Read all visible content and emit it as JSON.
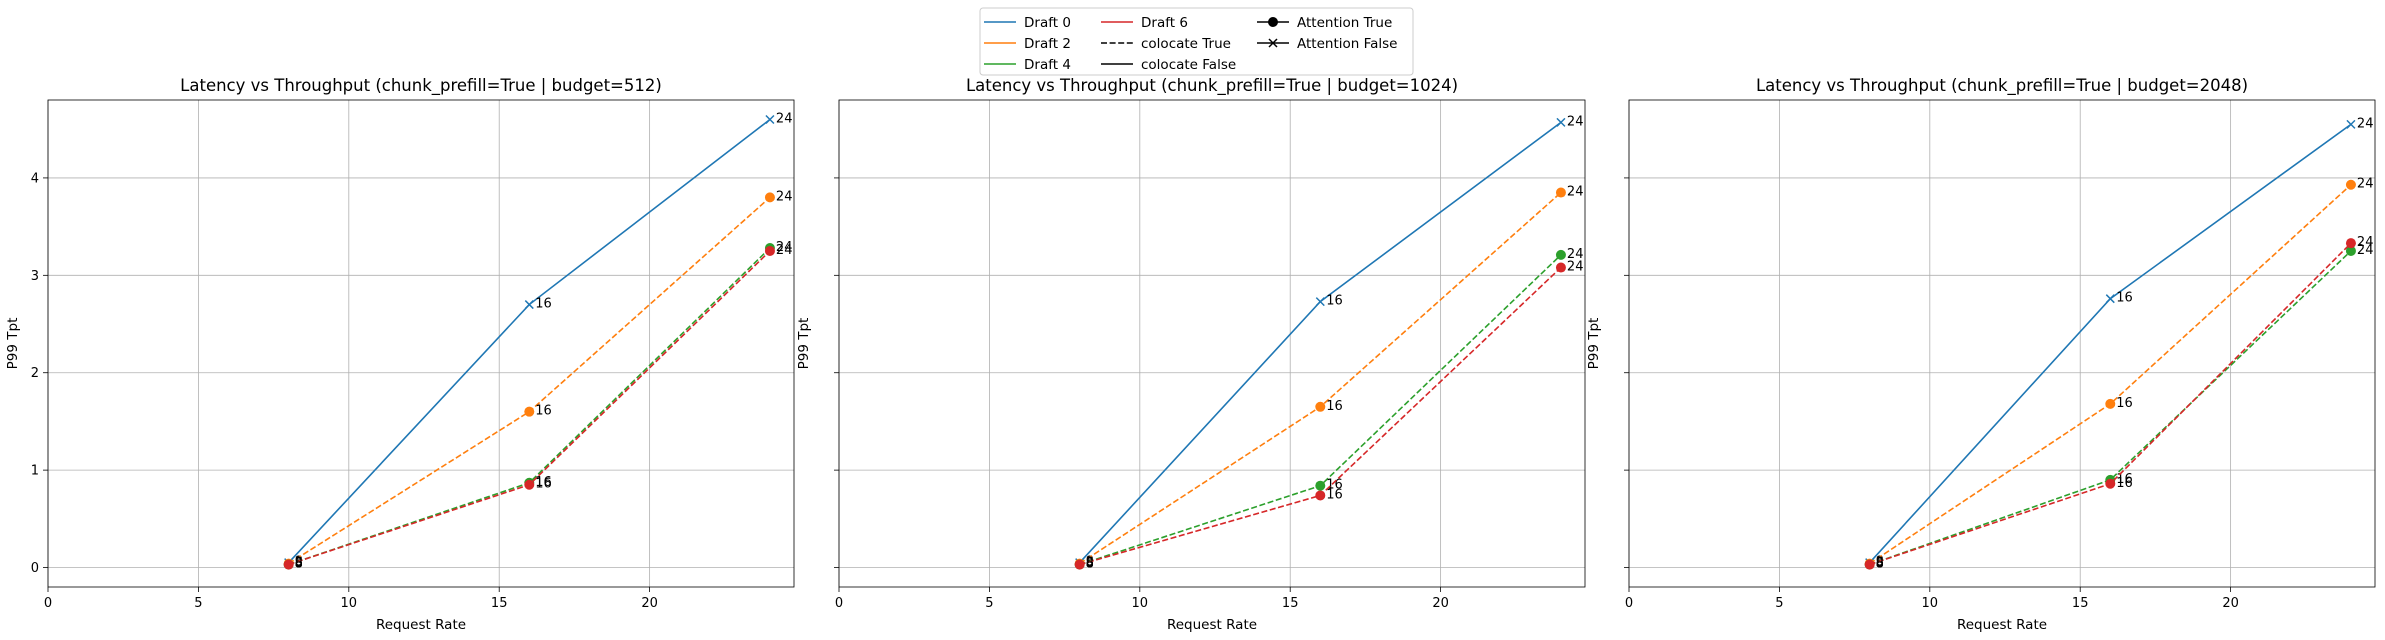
{
  "legend": {
    "entries": [
      {
        "label": "Draft 0",
        "color": "#1f77b4",
        "kind": "line",
        "dash": "solid"
      },
      {
        "label": "Draft 2",
        "color": "#ff7f0e",
        "kind": "line",
        "dash": "solid"
      },
      {
        "label": "Draft 4",
        "color": "#2ca02c",
        "kind": "line",
        "dash": "solid"
      },
      {
        "label": "Draft 6",
        "color": "#d62728",
        "kind": "line",
        "dash": "solid"
      },
      {
        "label": "colocate True",
        "color": "#000000",
        "kind": "line",
        "dash": "dashed"
      },
      {
        "label": "colocate False",
        "color": "#000000",
        "kind": "line",
        "dash": "solid"
      },
      {
        "label": "Attention True",
        "color": "#000000",
        "kind": "marker",
        "marker": "o"
      },
      {
        "label": "Attention False",
        "color": "#000000",
        "kind": "marker",
        "marker": "x"
      }
    ],
    "placement": "top-center"
  },
  "chart_data": [
    {
      "type": "line",
      "title": "Latency vs Throughput (chunk_prefill=True | budget=512)",
      "xlabel": "Request Rate",
      "ylabel": "P99 Tpt",
      "xlim": [
        0,
        24.8
      ],
      "ylim": [
        -0.2,
        4.8
      ],
      "xticks": [
        0,
        5,
        10,
        15,
        20
      ],
      "yticks": [
        0,
        1,
        2,
        3,
        4
      ],
      "grid": true,
      "series": [
        {
          "name": "Draft 0",
          "color": "#1f77b4",
          "dash": "solid",
          "marker": "x",
          "x": [
            8,
            16,
            24
          ],
          "y": [
            0.05,
            2.7,
            4.6
          ],
          "labels": [
            "8",
            "16",
            "24"
          ]
        },
        {
          "name": "Draft 2",
          "color": "#ff7f0e",
          "dash": "dashed",
          "marker": "o",
          "x": [
            8,
            16,
            24
          ],
          "y": [
            0.04,
            1.6,
            3.8
          ],
          "labels": [
            "8",
            "16",
            "24"
          ]
        },
        {
          "name": "Draft 4",
          "color": "#2ca02c",
          "dash": "dashed",
          "marker": "o",
          "x": [
            8,
            16,
            24
          ],
          "y": [
            0.03,
            0.87,
            3.28
          ],
          "labels": [
            "8",
            "16",
            "24"
          ]
        },
        {
          "name": "Draft 6",
          "color": "#d62728",
          "dash": "dashed",
          "marker": "o",
          "x": [
            8,
            16,
            24
          ],
          "y": [
            0.03,
            0.85,
            3.25
          ],
          "labels": [
            "8",
            "16",
            "24"
          ]
        }
      ]
    },
    {
      "type": "line",
      "title": "Latency vs Throughput (chunk_prefill=True | budget=1024)",
      "xlabel": "Request Rate",
      "ylabel": "P99 Tpt",
      "xlim": [
        0,
        24.8
      ],
      "ylim": [
        -0.2,
        4.8
      ],
      "xticks": [
        0,
        5,
        10,
        15,
        20
      ],
      "yticks": [
        0,
        1,
        2,
        3,
        4
      ],
      "grid": true,
      "series": [
        {
          "name": "Draft 0",
          "color": "#1f77b4",
          "dash": "solid",
          "marker": "x",
          "x": [
            8,
            16,
            24
          ],
          "y": [
            0.05,
            2.73,
            4.57
          ],
          "labels": [
            "8",
            "16",
            "24"
          ]
        },
        {
          "name": "Draft 2",
          "color": "#ff7f0e",
          "dash": "dashed",
          "marker": "o",
          "x": [
            8,
            16,
            24
          ],
          "y": [
            0.04,
            1.65,
            3.85
          ],
          "labels": [
            "8",
            "16",
            "24"
          ]
        },
        {
          "name": "Draft 4",
          "color": "#2ca02c",
          "dash": "dashed",
          "marker": "o",
          "x": [
            8,
            16,
            24
          ],
          "y": [
            0.03,
            0.84,
            3.21
          ],
          "labels": [
            "8",
            "16",
            "24"
          ]
        },
        {
          "name": "Draft 6",
          "color": "#d62728",
          "dash": "dashed",
          "marker": "o",
          "x": [
            8,
            16,
            24
          ],
          "y": [
            0.03,
            0.74,
            3.08
          ],
          "labels": [
            "8",
            "16",
            "24"
          ]
        }
      ]
    },
    {
      "type": "line",
      "title": "Latency vs Throughput (chunk_prefill=True | budget=2048)",
      "xlabel": "Request Rate",
      "ylabel": "P99 Tpt",
      "xlim": [
        0,
        24.8
      ],
      "ylim": [
        -0.2,
        4.8
      ],
      "xticks": [
        0,
        5,
        10,
        15,
        20
      ],
      "yticks": [
        0,
        1,
        2,
        3,
        4
      ],
      "grid": true,
      "series": [
        {
          "name": "Draft 0",
          "color": "#1f77b4",
          "dash": "solid",
          "marker": "x",
          "x": [
            8,
            16,
            24
          ],
          "y": [
            0.05,
            2.76,
            4.55
          ],
          "labels": [
            "8",
            "16",
            "24"
          ]
        },
        {
          "name": "Draft 2",
          "color": "#ff7f0e",
          "dash": "dashed",
          "marker": "o",
          "x": [
            8,
            16,
            24
          ],
          "y": [
            0.04,
            1.68,
            3.93
          ],
          "labels": [
            "8",
            "16",
            "24"
          ]
        },
        {
          "name": "Draft 4",
          "color": "#2ca02c",
          "dash": "dashed",
          "marker": "o",
          "x": [
            8,
            16,
            24
          ],
          "y": [
            0.03,
            0.9,
            3.25
          ],
          "labels": [
            "8",
            "16",
            "24"
          ]
        },
        {
          "name": "Draft 6",
          "color": "#d62728",
          "dash": "dashed",
          "marker": "o",
          "x": [
            8,
            16,
            24
          ],
          "y": [
            0.03,
            0.86,
            3.33
          ],
          "labels": [
            "8",
            "16",
            "24"
          ]
        }
      ]
    }
  ]
}
